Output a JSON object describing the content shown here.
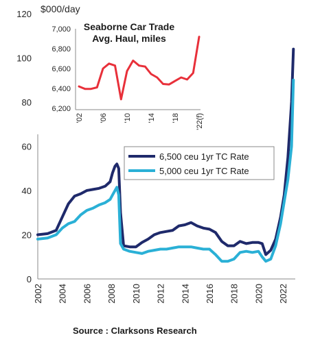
{
  "chart_data": [
    {
      "type": "line",
      "unit_label": "$000/day",
      "xlim": [
        2002,
        2023
      ],
      "ylim": [
        0,
        120
      ],
      "x_ticks": [
        "2002",
        "2004",
        "2006",
        "2008",
        "2010",
        "2012",
        "2014",
        "2016",
        "2018",
        "2020",
        "2022"
      ],
      "y_ticks": [
        "0",
        "20",
        "40",
        "60",
        "80",
        "100",
        "120"
      ],
      "grid": false,
      "legend_position": "center-right",
      "series": [
        {
          "name": "6,500 ceu 1yr TC Rate",
          "color": "#1f2a6b",
          "x": [
            2002,
            2002.8,
            2003.5,
            2004,
            2004.5,
            2005,
            2005.5,
            2006,
            2006.5,
            2007,
            2007.5,
            2007.9,
            2008.1,
            2008.3,
            2008.45,
            2008.6,
            2008.75,
            2009,
            2009.5,
            2010,
            2010.5,
            2011,
            2011.5,
            2012,
            2012.5,
            2013,
            2013.5,
            2014,
            2014.5,
            2015,
            2015.5,
            2016,
            2016.5,
            2017,
            2017.5,
            2018,
            2018.5,
            2019,
            2019.5,
            2020,
            2020.3,
            2020.6,
            2021,
            2021.4,
            2021.8,
            2022.1,
            2022.4,
            2022.7,
            2022.85
          ],
          "y": [
            20,
            20.5,
            22,
            28,
            34,
            37.5,
            38.5,
            40,
            40.5,
            41,
            42,
            44,
            48,
            51,
            52,
            50,
            30,
            15,
            14.5,
            14.5,
            16.5,
            18,
            20,
            21,
            21.5,
            22,
            24,
            24.5,
            25.5,
            24,
            23,
            22.5,
            21,
            17,
            15,
            15,
            17,
            16,
            16.5,
            16.5,
            16,
            11,
            13,
            18,
            28,
            38,
            55,
            80,
            104
          ]
        },
        {
          "name": "5,000 ceu 1yr TC Rate",
          "color": "#2ab0d6",
          "x": [
            2002,
            2002.8,
            2003.5,
            2004,
            2004.5,
            2005,
            2005.5,
            2006,
            2006.5,
            2007,
            2007.5,
            2007.9,
            2008.1,
            2008.3,
            2008.45,
            2008.6,
            2008.75,
            2009,
            2009.5,
            2010,
            2010.5,
            2011,
            2011.5,
            2012,
            2012.5,
            2013,
            2013.5,
            2014,
            2014.5,
            2015,
            2015.5,
            2016,
            2016.5,
            2017,
            2017.5,
            2018,
            2018.5,
            2019,
            2019.5,
            2020,
            2020.3,
            2020.6,
            2021,
            2021.4,
            2021.8,
            2022.1,
            2022.4,
            2022.7,
            2022.85
          ],
          "y": [
            18,
            18.5,
            20,
            23,
            25,
            26,
            29,
            31,
            32,
            33.5,
            34.5,
            36,
            38,
            40,
            41.5,
            38,
            16,
            13.5,
            12.5,
            12,
            11.5,
            12.5,
            13,
            13.5,
            13.5,
            14,
            14.5,
            14.5,
            14.5,
            14,
            13.5,
            13.5,
            11,
            8,
            8,
            9,
            12,
            12.5,
            12,
            12.5,
            10,
            8,
            9,
            15,
            25,
            35,
            45,
            60,
            90
          ]
        }
      ]
    },
    {
      "type": "line",
      "title": "Seaborne Car Trade Avg. Haul, miles",
      "xlim": [
        2002,
        2022
      ],
      "ylim": [
        6200,
        7000
      ],
      "x_ticks": [
        "'02",
        "'06",
        "'10",
        "'14",
        "'18",
        "'22(f)"
      ],
      "y_ticks": [
        "6,200",
        "6,400",
        "6,600",
        "6,800",
        "7,000"
      ],
      "series": [
        {
          "name": "",
          "color": "#e8303a",
          "x": [
            2002,
            2003,
            2004,
            2005,
            2006,
            2007,
            2008,
            2009,
            2010,
            2011,
            2012,
            2013,
            2014,
            2015,
            2016,
            2017,
            2018,
            2019,
            2020,
            2021,
            2022
          ],
          "y": [
            6420,
            6395,
            6395,
            6410,
            6600,
            6650,
            6630,
            6290,
            6575,
            6680,
            6630,
            6620,
            6545,
            6510,
            6445,
            6440,
            6475,
            6510,
            6490,
            6555,
            6920
          ]
        }
      ]
    }
  ],
  "source_text": "Source : Clarksons Research"
}
